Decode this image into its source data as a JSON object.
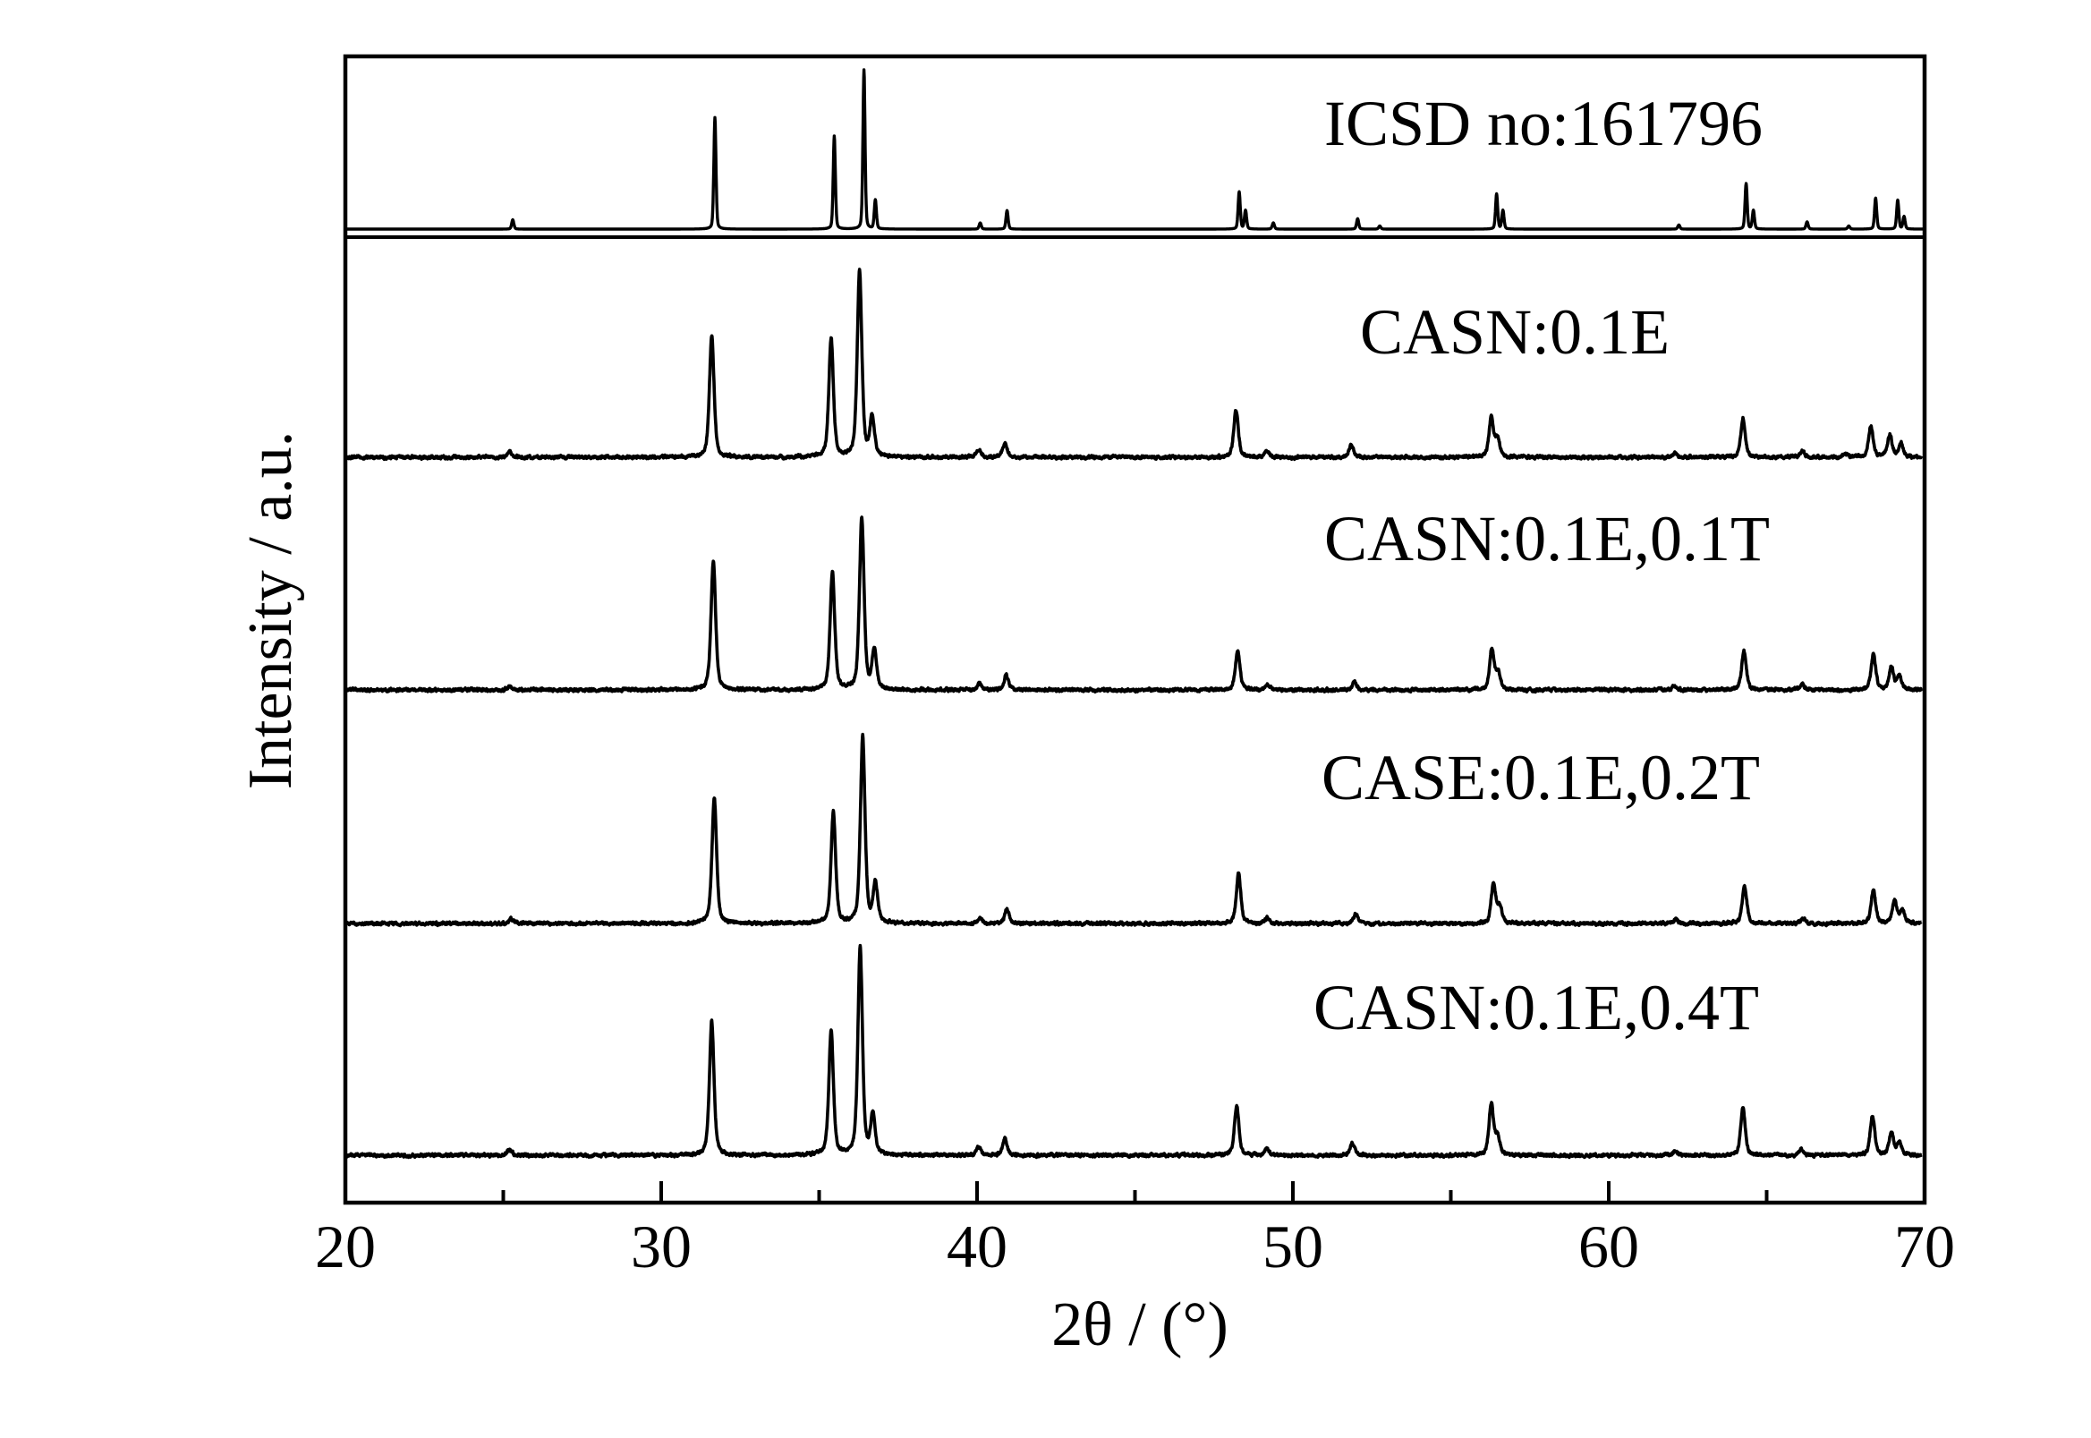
{
  "chart_data": {
    "type": "line",
    "layout": "stacked",
    "xlabel": "2θ / (°)",
    "ylabel": "Intensity / a.u.",
    "xlim": [
      20,
      70
    ],
    "xticks": [
      20,
      30,
      40,
      50,
      60,
      70
    ],
    "xticks_minor": [
      25,
      35,
      45,
      55,
      65
    ],
    "grid": false,
    "legend": "none",
    "line_color": "#000000",
    "series": [
      {
        "name": "ICSD no:161796",
        "peaks": [
          [
            25.3,
            4.5
          ],
          [
            31.7,
            54
          ],
          [
            35.48,
            45
          ],
          [
            36.42,
            77
          ],
          [
            36.78,
            14
          ],
          [
            40.1,
            3
          ],
          [
            40.95,
            9
          ],
          [
            48.3,
            18
          ],
          [
            48.5,
            9
          ],
          [
            49.38,
            3
          ],
          [
            52.05,
            5
          ],
          [
            52.75,
            1.5
          ],
          [
            56.45,
            17
          ],
          [
            56.65,
            9
          ],
          [
            62.22,
            2
          ],
          [
            64.35,
            22
          ],
          [
            64.58,
            9
          ],
          [
            66.28,
            3.5
          ],
          [
            67.6,
            1.5
          ],
          [
            68.45,
            15
          ],
          [
            69.15,
            14
          ],
          [
            69.35,
            6
          ]
        ]
      },
      {
        "name": "CASN:0.1E",
        "peaks": [
          [
            25.2,
            2.5
          ],
          [
            31.6,
            59
          ],
          [
            35.38,
            57
          ],
          [
            36.28,
            90
          ],
          [
            36.68,
            19
          ],
          [
            40.05,
            4
          ],
          [
            40.88,
            7
          ],
          [
            48.2,
            23
          ],
          [
            49.18,
            3
          ],
          [
            51.85,
            6
          ],
          [
            56.28,
            19
          ],
          [
            56.48,
            9
          ],
          [
            62.1,
            2
          ],
          [
            64.25,
            19
          ],
          [
            66.12,
            3
          ],
          [
            67.5,
            1.5
          ],
          [
            68.3,
            15
          ],
          [
            68.9,
            11
          ],
          [
            69.25,
            7
          ]
        ]
      },
      {
        "name": "CASN:0.1E,0.1T",
        "peaks": [
          [
            25.2,
            2
          ],
          [
            31.65,
            62
          ],
          [
            35.42,
            57
          ],
          [
            36.35,
            83
          ],
          [
            36.75,
            19
          ],
          [
            40.08,
            3
          ],
          [
            40.92,
            7
          ],
          [
            48.25,
            19
          ],
          [
            49.2,
            2.5
          ],
          [
            51.95,
            4
          ],
          [
            56.3,
            20
          ],
          [
            56.5,
            8
          ],
          [
            62.1,
            2
          ],
          [
            64.28,
            19
          ],
          [
            66.12,
            2.5
          ],
          [
            68.38,
            17
          ],
          [
            68.95,
            11
          ],
          [
            69.2,
            6
          ]
        ]
      },
      {
        "name": "CASE:0.1E,0.2T",
        "peaks": [
          [
            25.25,
            2
          ],
          [
            31.68,
            61
          ],
          [
            35.45,
            54
          ],
          [
            36.38,
            90
          ],
          [
            36.78,
            19
          ],
          [
            40.1,
            2.5
          ],
          [
            40.95,
            7
          ],
          [
            48.28,
            24
          ],
          [
            49.2,
            2.5
          ],
          [
            52.0,
            4.5
          ],
          [
            56.35,
            19
          ],
          [
            56.55,
            8
          ],
          [
            62.12,
            2
          ],
          [
            64.3,
            18
          ],
          [
            66.15,
            2.5
          ],
          [
            68.38,
            16
          ],
          [
            69.05,
            11
          ],
          [
            69.3,
            6
          ]
        ]
      },
      {
        "name": "CASN:0.1E,0.4T",
        "peaks": [
          [
            25.2,
            3
          ],
          [
            31.6,
            65
          ],
          [
            35.38,
            60
          ],
          [
            36.3,
            100
          ],
          [
            36.7,
            19
          ],
          [
            40.05,
            4
          ],
          [
            40.88,
            8
          ],
          [
            48.22,
            24
          ],
          [
            49.18,
            3
          ],
          [
            51.88,
            6
          ],
          [
            56.28,
            25
          ],
          [
            56.48,
            9
          ],
          [
            62.1,
            2
          ],
          [
            64.25,
            23
          ],
          [
            66.1,
            2.5
          ],
          [
            68.35,
            19
          ],
          [
            68.95,
            11
          ],
          [
            69.2,
            6
          ]
        ]
      }
    ]
  }
}
